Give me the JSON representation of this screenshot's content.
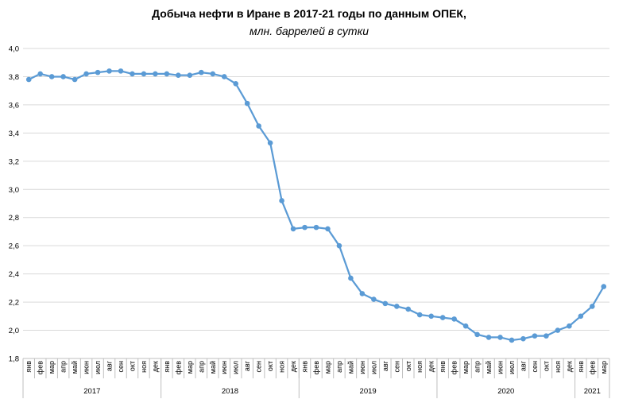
{
  "chart_data": {
    "type": "line",
    "title": "Добыча  нефти в Иране в 2017-21 годы по данным  ОПЕК,",
    "subtitle": "млн. баррелей в сутки",
    "xlabel": "",
    "ylabel": "",
    "ylim": [
      1.8,
      4.0
    ],
    "yticks": [
      "1,8",
      "2,0",
      "2,2",
      "2,4",
      "2,6",
      "2,8",
      "3,0",
      "3,2",
      "3,4",
      "3,6",
      "3,8",
      "4,0"
    ],
    "grid": true,
    "legend": "none",
    "color": "#5b9bd5",
    "categories": [
      "янв",
      "фев",
      "мар",
      "апр",
      "май",
      "июн",
      "июл",
      "авг",
      "сен",
      "окт",
      "ноя",
      "дек",
      "янв",
      "фев",
      "мар",
      "апр",
      "май",
      "июн",
      "июл",
      "авг",
      "сен",
      "окт",
      "ноя",
      "дек",
      "янв",
      "фев",
      "мар",
      "апр",
      "май",
      "июн",
      "июл",
      "авг",
      "сен",
      "окт",
      "ноя",
      "дек",
      "янв",
      "фев",
      "мар",
      "апр",
      "май",
      "июн",
      "июл",
      "авг",
      "сен",
      "окт",
      "ноя",
      "дек",
      "янв",
      "фев",
      "мар"
    ],
    "years": [
      {
        "label": "2017",
        "months": 12
      },
      {
        "label": "2018",
        "months": 12
      },
      {
        "label": "2019",
        "months": 12
      },
      {
        "label": "2020",
        "months": 12
      },
      {
        "label": "2021",
        "months": 3
      }
    ],
    "values": [
      3.78,
      3.82,
      3.8,
      3.8,
      3.78,
      3.82,
      3.83,
      3.84,
      3.84,
      3.82,
      3.82,
      3.82,
      3.82,
      3.81,
      3.81,
      3.83,
      3.82,
      3.8,
      3.75,
      3.61,
      3.45,
      3.33,
      2.92,
      2.72,
      2.73,
      2.73,
      2.72,
      2.6,
      2.37,
      2.26,
      2.22,
      2.19,
      2.17,
      2.15,
      2.11,
      2.1,
      2.09,
      2.08,
      2.03,
      1.97,
      1.95,
      1.95,
      1.93,
      1.94,
      1.96,
      1.96,
      2.0,
      2.03,
      2.1,
      2.17,
      2.31
    ]
  }
}
